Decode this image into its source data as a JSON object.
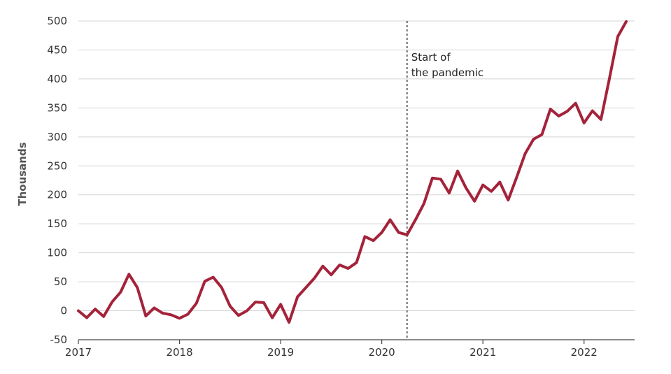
{
  "chart_data": {
    "type": "line",
    "title": "",
    "xlabel": "",
    "ylabel": "Thousands",
    "ylim": [
      -50,
      500
    ],
    "yticks": [
      -50,
      0,
      50,
      100,
      150,
      200,
      250,
      300,
      350,
      400,
      450,
      500
    ],
    "xlim": [
      2017,
      2022.5
    ],
    "xticks": [
      "2017",
      "2018",
      "2019",
      "2020",
      "2021",
      "2022"
    ],
    "grid": true,
    "line_color": "#a4233a",
    "annotation": {
      "x": 2020.25,
      "lines": [
        "Start of",
        "the pandemic"
      ]
    },
    "series": [
      {
        "x": [
          2017.0,
          2017.083,
          2017.167,
          2017.25,
          2017.333,
          2017.417,
          2017.5,
          2017.583,
          2017.667,
          2017.75,
          2017.833,
          2017.917,
          2018.0,
          2018.083,
          2018.167,
          2018.25,
          2018.333,
          2018.417,
          2018.5,
          2018.583,
          2018.667,
          2018.75,
          2018.833,
          2018.917,
          2019.0,
          2019.083,
          2019.167,
          2019.25,
          2019.333,
          2019.417,
          2019.5,
          2019.583,
          2019.667,
          2019.75,
          2019.833,
          2019.917,
          2020.0,
          2020.083,
          2020.167,
          2020.25,
          2020.333,
          2020.417,
          2020.5,
          2020.583,
          2020.667,
          2020.75,
          2020.833,
          2020.917,
          2021.0,
          2021.083,
          2021.167,
          2021.25,
          2021.333,
          2021.417,
          2021.5,
          2021.583,
          2021.667,
          2021.75,
          2021.833,
          2021.917,
          2022.0,
          2022.083,
          2022.167,
          2022.25,
          2022.333,
          2022.417
        ],
        "values": [
          0,
          -12,
          3,
          -10,
          15,
          32,
          63,
          40,
          -9,
          5,
          -4,
          -7,
          -13,
          -6,
          13,
          51,
          58,
          40,
          8,
          -8,
          0,
          15,
          14,
          -12,
          11,
          -20,
          24,
          40,
          56,
          77,
          62,
          79,
          73,
          83,
          128,
          121,
          135,
          157,
          135,
          131,
          157,
          185,
          229,
          227,
          203,
          241,
          212,
          189,
          217,
          206,
          222,
          191,
          230,
          271,
          296,
          304,
          348,
          336,
          344,
          358,
          324,
          345,
          330,
          400,
          473,
          499
        ]
      }
    ]
  }
}
